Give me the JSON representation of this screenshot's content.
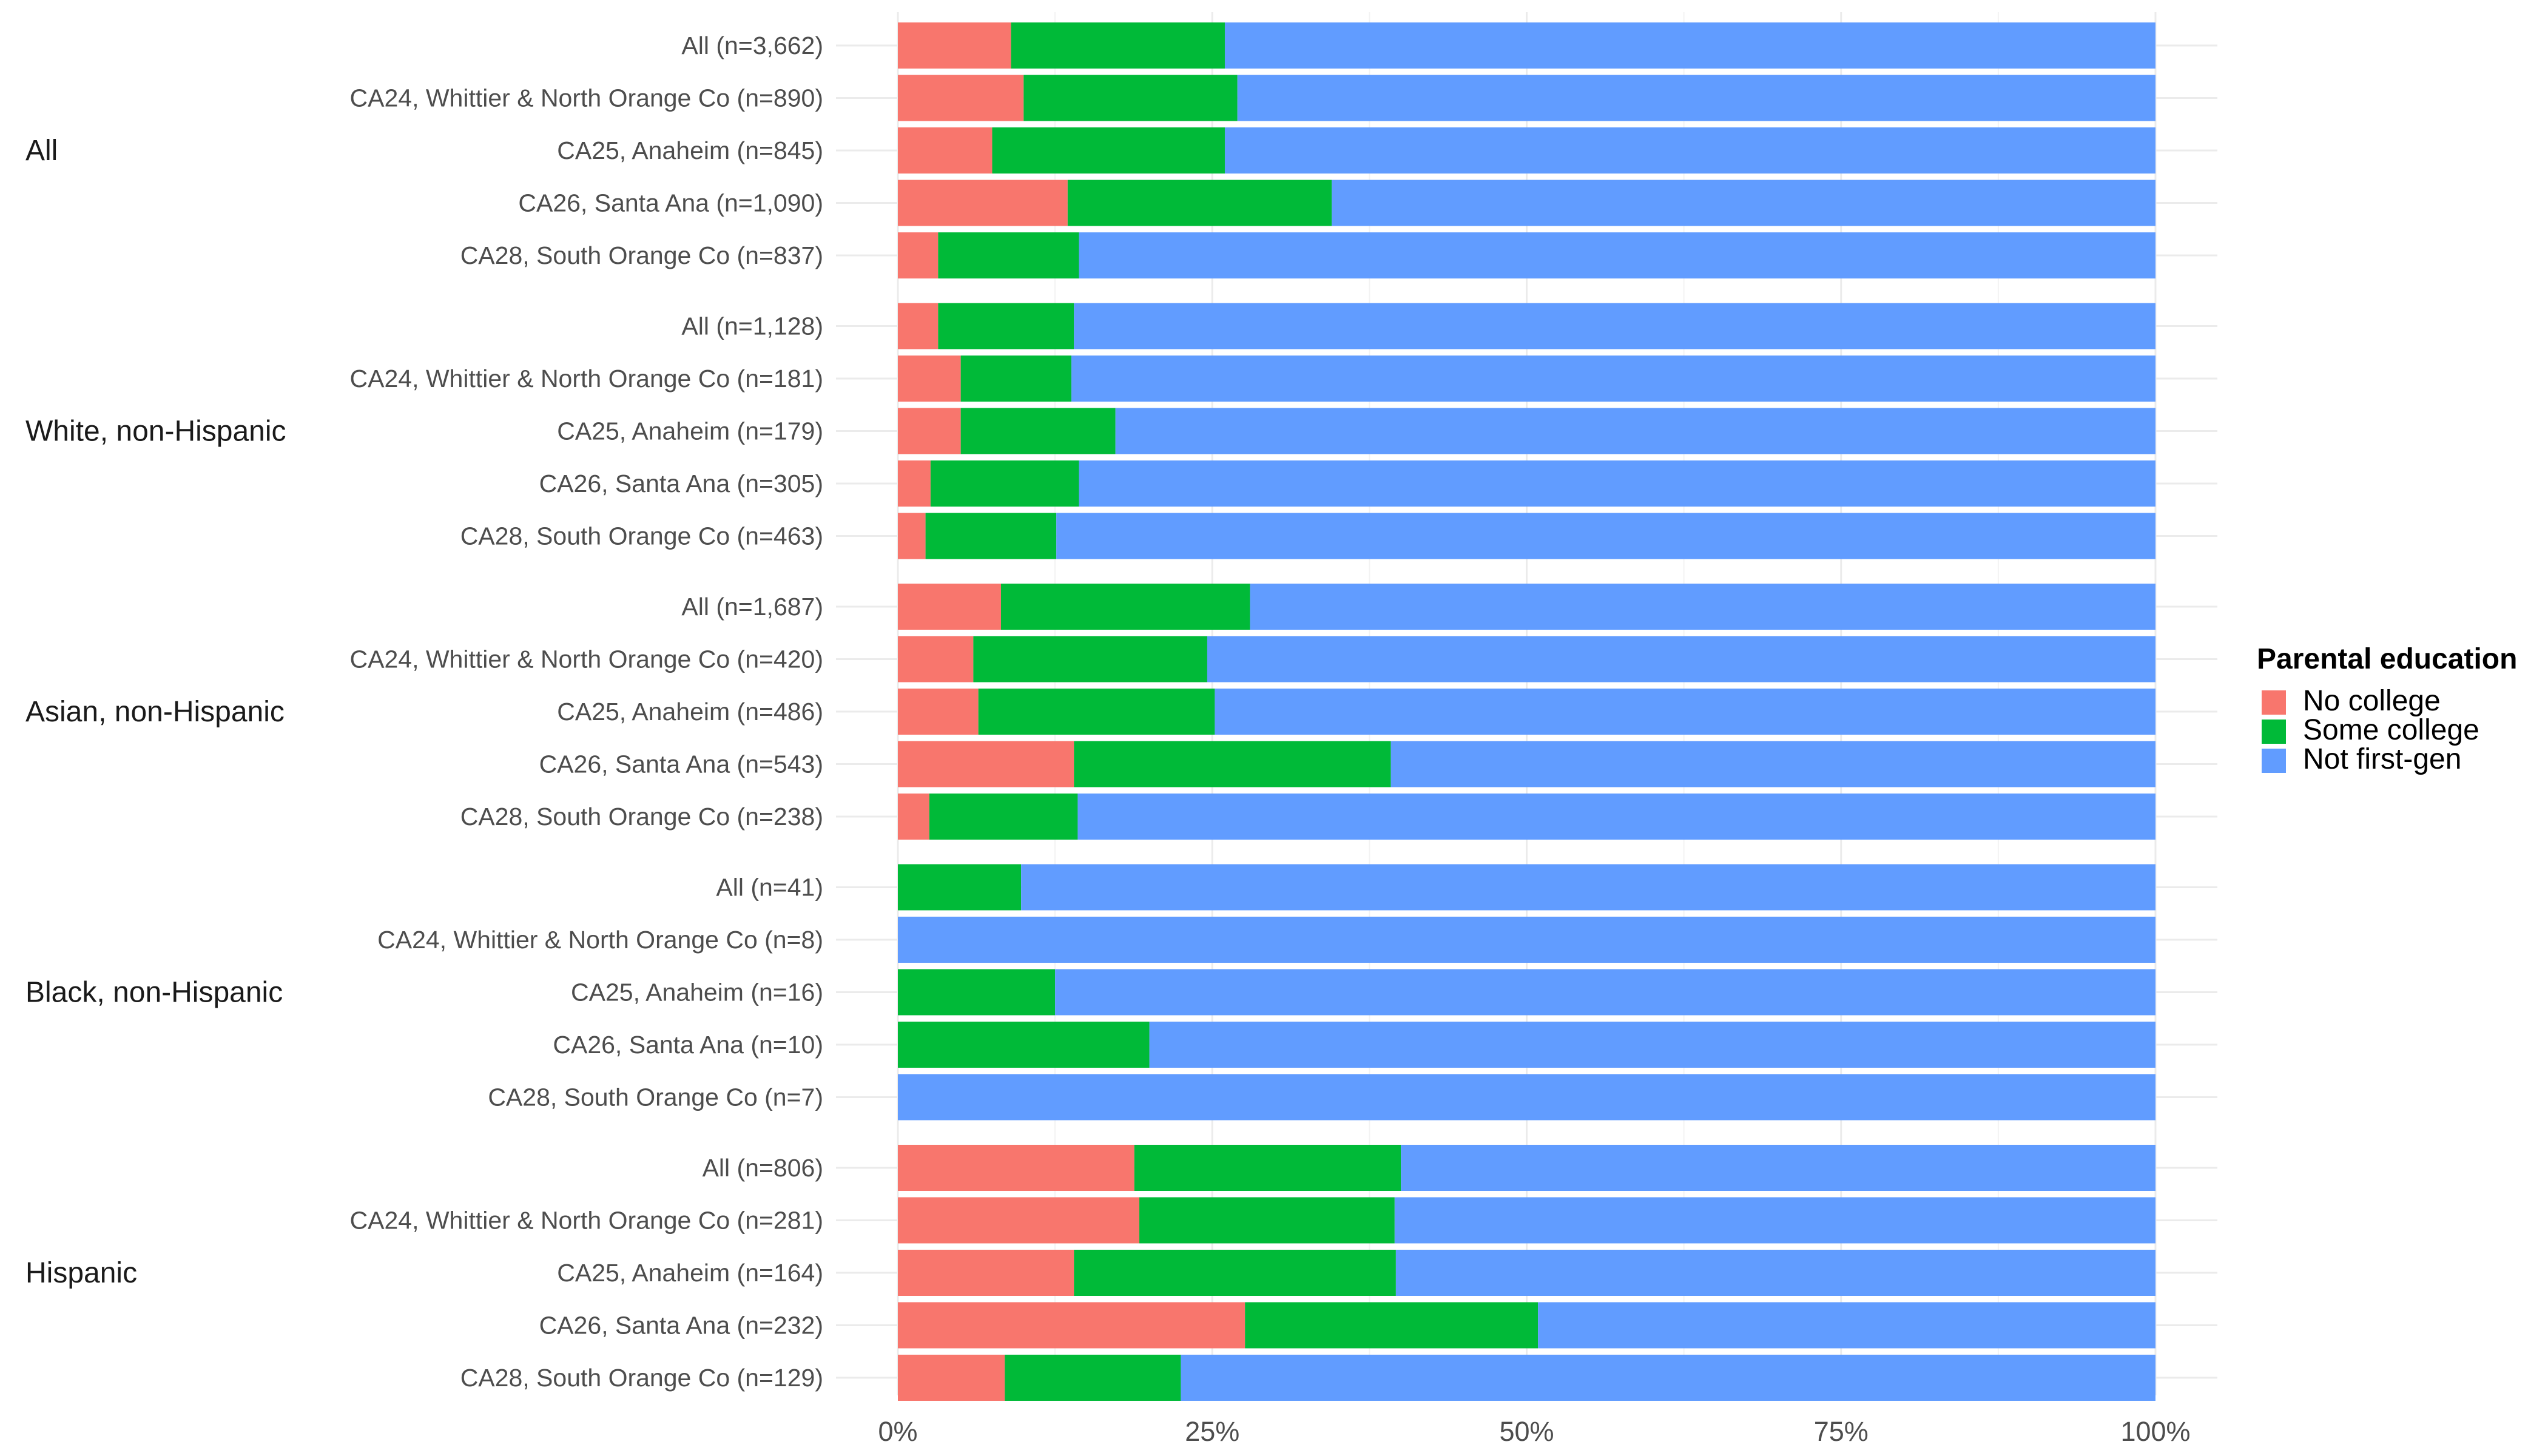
{
  "chart_data": {
    "type": "bar",
    "orientation": "horizontal",
    "stacked": true,
    "title": "",
    "xlabel": "",
    "ylabel": "",
    "xlim": [
      0,
      100
    ],
    "x_ticks": [
      "0%",
      "25%",
      "50%",
      "75%",
      "100%"
    ],
    "grid": true,
    "legend_position": "right",
    "legend": {
      "title": "Parental education",
      "items": [
        "No college",
        "Some college",
        "Not first-gen"
      ]
    },
    "colors": {
      "No college": "#F8766D",
      "Some college": "#00BA38",
      "Not first-gen": "#619CFF"
    },
    "facets": [
      {
        "name": "All",
        "rows": [
          {
            "label": "All (n=3,662)",
            "values": [
              9,
              17,
              74
            ]
          },
          {
            "label": "CA24, Whittier & North Orange Co (n=890)",
            "values": [
              10,
              17,
              73
            ]
          },
          {
            "label": "CA25, Anaheim (n=845)",
            "values": [
              7.5,
              18.5,
              74
            ]
          },
          {
            "label": "CA26, Santa Ana (n=1,090)",
            "values": [
              13.5,
              21,
              65.5
            ]
          },
          {
            "label": "CA28, South Orange Co (n=837)",
            "values": [
              3.2,
              11.2,
              85.6
            ]
          }
        ]
      },
      {
        "name": "White, non-Hispanic",
        "rows": [
          {
            "label": "All (n=1,128)",
            "values": [
              3.2,
              10.8,
              86
            ]
          },
          {
            "label": "CA24, Whittier & North Orange Co (n=181)",
            "values": [
              5,
              8.8,
              86.2
            ]
          },
          {
            "label": "CA25, Anaheim (n=179)",
            "values": [
              5,
              12.3,
              82.7
            ]
          },
          {
            "label": "CA26, Santa Ana (n=305)",
            "values": [
              2.6,
              11.8,
              85.6
            ]
          },
          {
            "label": "CA28, South Orange Co (n=463)",
            "values": [
              2.2,
              10.4,
              87.4
            ]
          }
        ]
      },
      {
        "name": "Asian, non-Hispanic",
        "rows": [
          {
            "label": "All (n=1,687)",
            "values": [
              8.2,
              19.8,
              72
            ]
          },
          {
            "label": "CA24, Whittier & North Orange Co (n=420)",
            "values": [
              6,
              18.6,
              75.4
            ]
          },
          {
            "label": "CA25, Anaheim (n=486)",
            "values": [
              6.4,
              18.8,
              74.8
            ]
          },
          {
            "label": "CA26, Santa Ana (n=543)",
            "values": [
              14,
              25.2,
              60.8
            ]
          },
          {
            "label": "CA28, South Orange Co (n=238)",
            "values": [
              2.5,
              11.8,
              85.7
            ]
          }
        ]
      },
      {
        "name": "Black, non-Hispanic",
        "rows": [
          {
            "label": "All (n=41)",
            "values": [
              0,
              9.8,
              90.2
            ]
          },
          {
            "label": "CA24, Whittier & North Orange Co (n=8)",
            "values": [
              0,
              0,
              100
            ]
          },
          {
            "label": "CA25, Anaheim (n=16)",
            "values": [
              0,
              12.5,
              87.5
            ]
          },
          {
            "label": "CA26, Santa Ana (n=10)",
            "values": [
              0,
              20,
              80
            ]
          },
          {
            "label": "CA28, South Orange Co (n=7)",
            "values": [
              0,
              0,
              100
            ]
          }
        ]
      },
      {
        "name": "Hispanic",
        "rows": [
          {
            "label": "All (n=806)",
            "values": [
              18.8,
              21.2,
              60
            ]
          },
          {
            "label": "CA24, Whittier & North Orange Co (n=281)",
            "values": [
              19.2,
              20.3,
              60.5
            ]
          },
          {
            "label": "CA25, Anaheim (n=164)",
            "values": [
              14,
              25.6,
              60.4
            ]
          },
          {
            "label": "CA26, Santa Ana (n=232)",
            "values": [
              27.6,
              23.3,
              49.1
            ]
          },
          {
            "label": "CA28, South Orange Co (n=129)",
            "values": [
              8.5,
              14,
              77.5
            ]
          }
        ]
      }
    ]
  }
}
